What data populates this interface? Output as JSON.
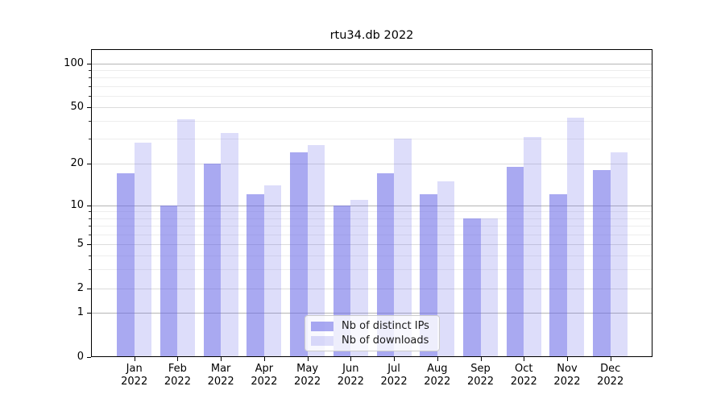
{
  "figure": {
    "title": "rtu34.db 2022"
  },
  "chart_data": {
    "type": "bar",
    "title": "rtu34.db 2022",
    "yscale": "symlog",
    "grid": "both",
    "ylim": [
      0,
      127
    ],
    "yticks": [
      0,
      1,
      2,
      5,
      10,
      20,
      50,
      100
    ],
    "yticks_power_of_ten": [
      1,
      10,
      100
    ],
    "yticks_minor": [
      3,
      4,
      6,
      7,
      8,
      9,
      30,
      40,
      60,
      70,
      80,
      90
    ],
    "months": [
      "Jan",
      "Feb",
      "Mar",
      "Apr",
      "May",
      "Jun",
      "Jul",
      "Aug",
      "Sep",
      "Oct",
      "Nov",
      "Dec"
    ],
    "year": "2022",
    "categories": [
      "Jan 2022",
      "Feb 2022",
      "Mar 2022",
      "Apr 2022",
      "May 2022",
      "Jun 2022",
      "Jul 2022",
      "Aug 2022",
      "Sep 2022",
      "Oct 2022",
      "Nov 2022",
      "Dec 2022"
    ],
    "series": [
      {
        "name": "Nb of distinct IPs",
        "color": "rgba(99,99,230,0.55)",
        "values": [
          17,
          10,
          20,
          12,
          24,
          10,
          17,
          12,
          8,
          19,
          12,
          18
        ]
      },
      {
        "name": "Nb of downloads",
        "color": "rgba(99,99,230,0.22)",
        "values": [
          28,
          41,
          33,
          14,
          27,
          11,
          30,
          15,
          8,
          31,
          42,
          24
        ]
      }
    ],
    "legend_position": "lower center"
  }
}
